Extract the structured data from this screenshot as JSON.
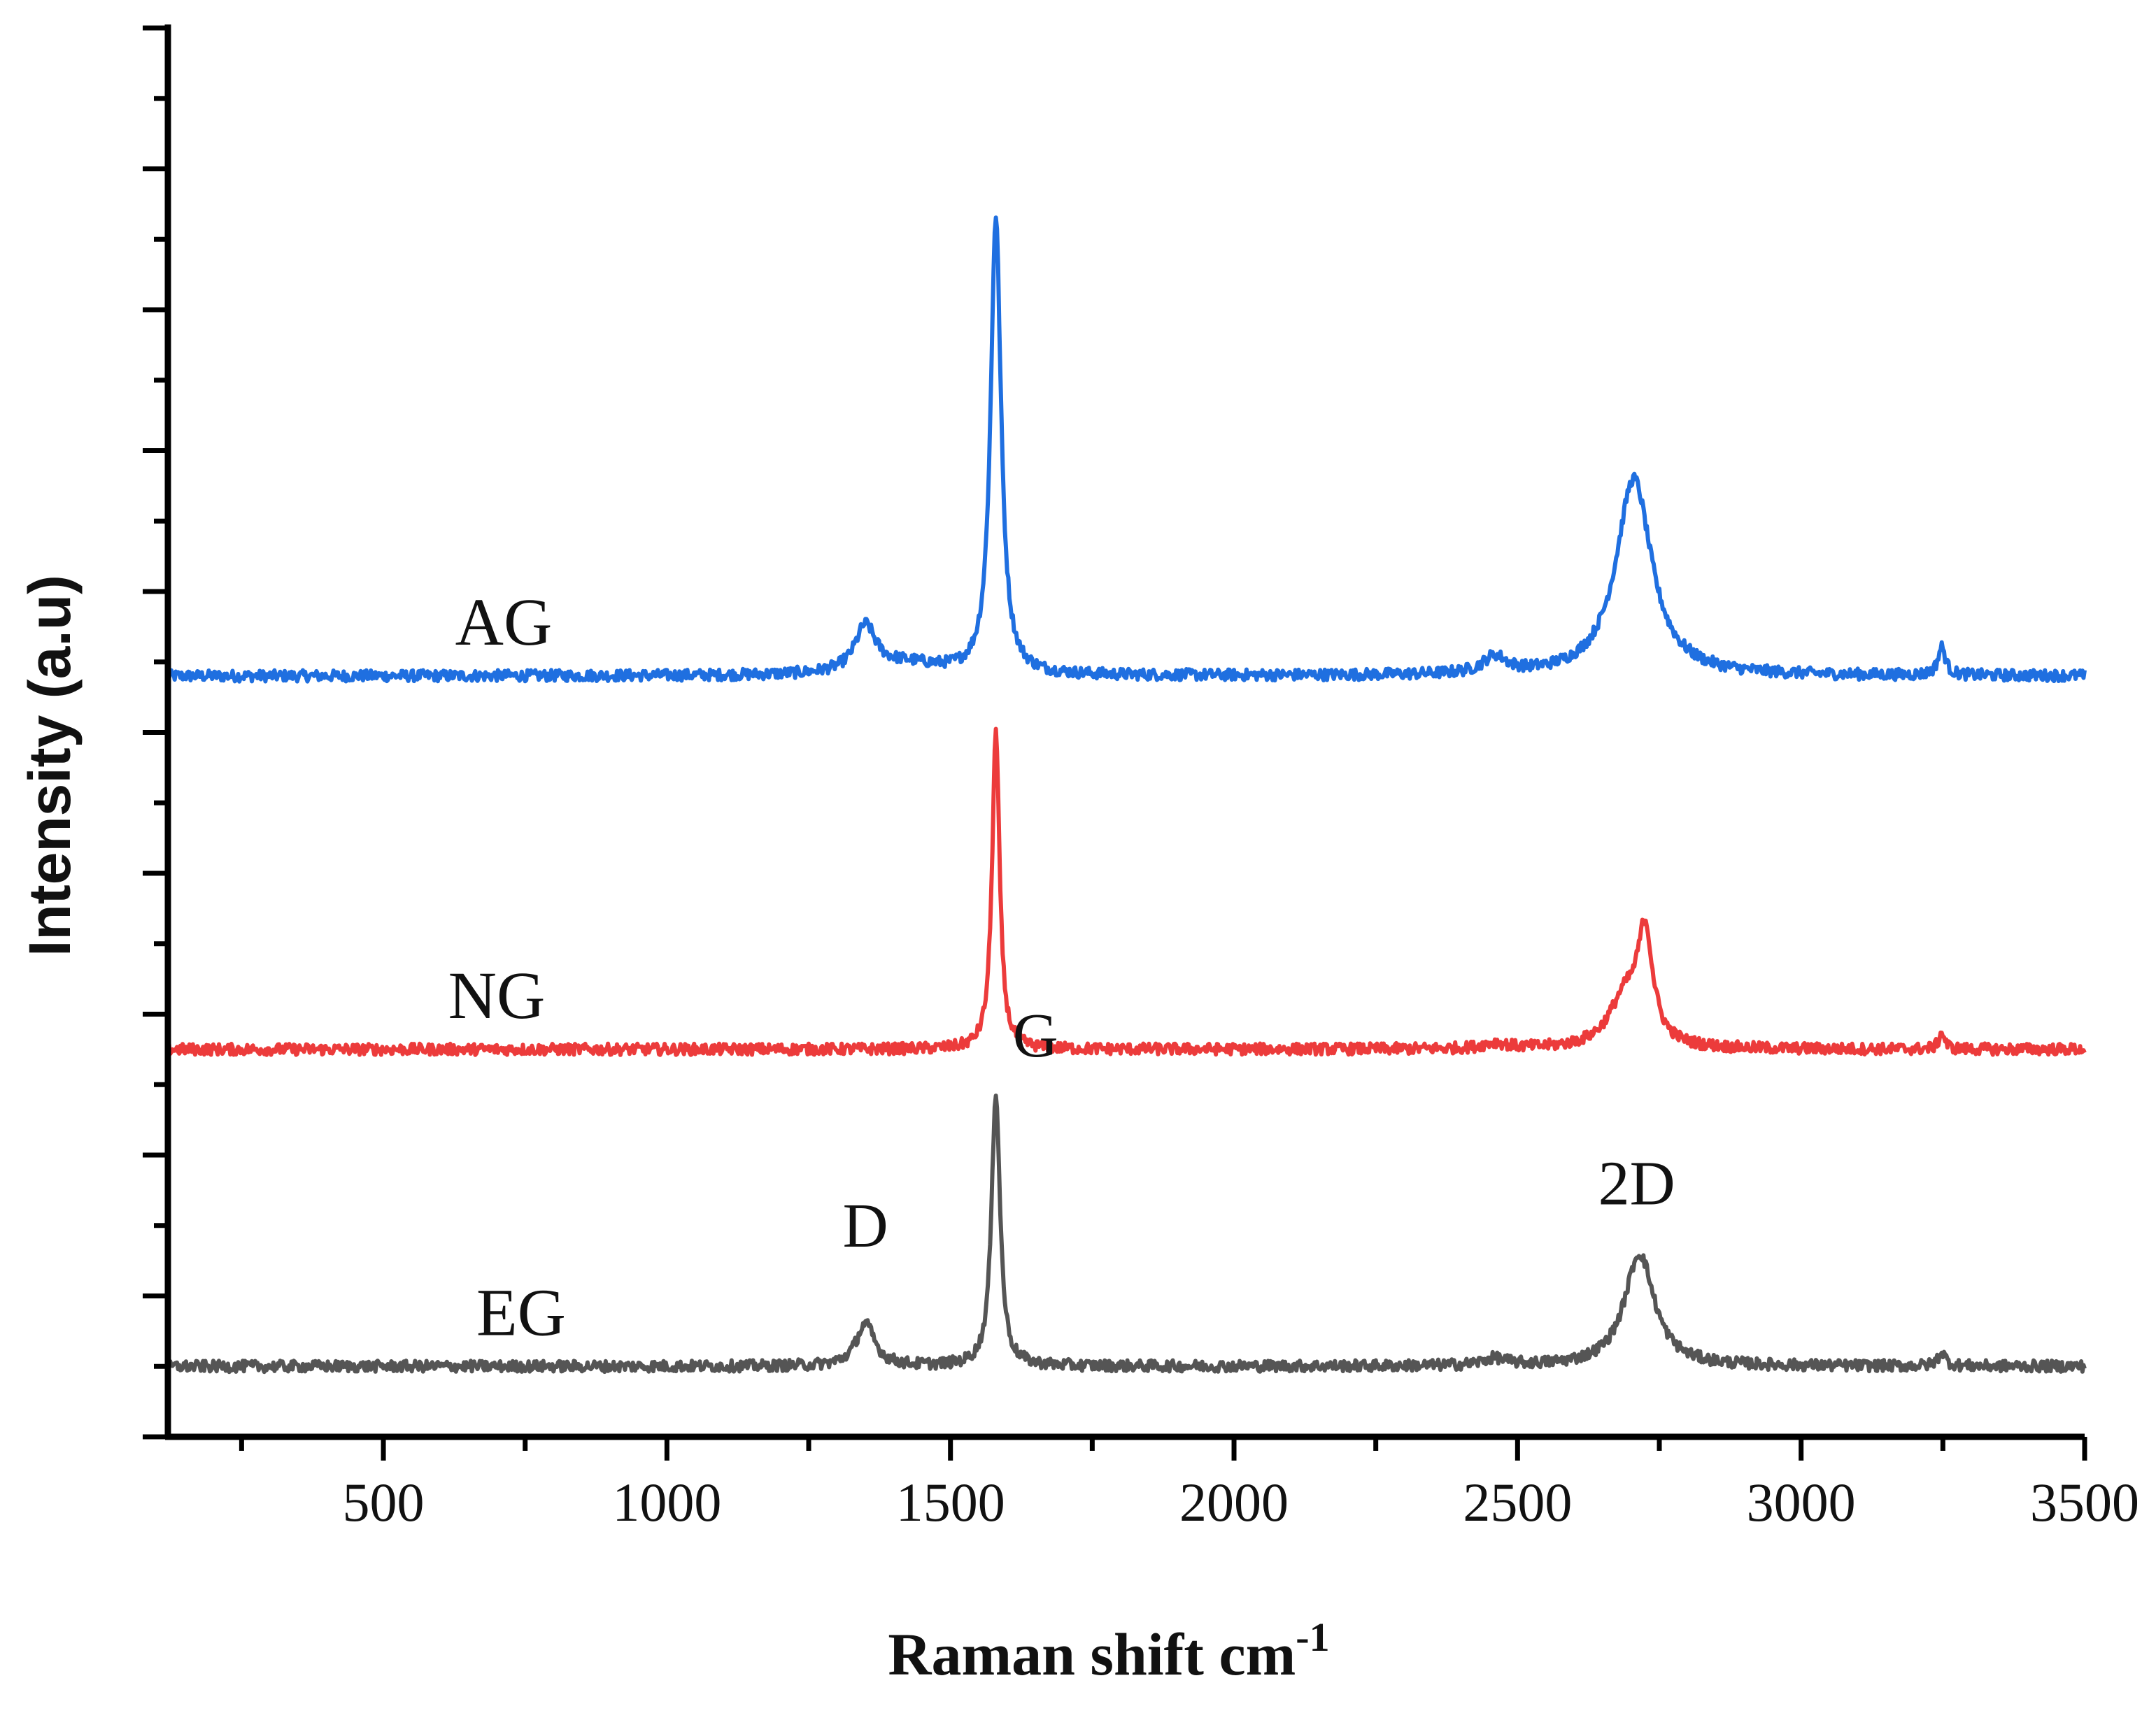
{
  "chart_data": {
    "type": "line",
    "title": "",
    "xlabel": "Raman shift cm",
    "xlabel_superscript": "-1",
    "ylabel": "Intensity (a.u)",
    "xlim": [
      120,
      3500
    ],
    "ylim": [
      0,
      1
    ],
    "x_ticks": [
      500,
      1000,
      1500,
      2000,
      2500,
      3000,
      3500
    ],
    "y_tick_labels_shown": false,
    "grid": false,
    "legend": "none",
    "series": [
      {
        "name": "AG",
        "color": "#1f6fe0",
        "offset": 0.54,
        "baseline": 0.0,
        "noise": 0.004,
        "peaks": [
          {
            "center": 1350,
            "height": 0.032,
            "width": 22
          },
          {
            "center": 1420,
            "height": 0.008,
            "width": 80
          },
          {
            "center": 1580,
            "height": 0.325,
            "width": 11
          },
          {
            "center": 2460,
            "height": 0.012,
            "width": 25
          },
          {
            "center": 2705,
            "height": 0.14,
            "width": 38
          },
          {
            "center": 3248,
            "height": 0.02,
            "width": 8
          }
        ]
      },
      {
        "name": "NG",
        "color": "#ec3b3b",
        "offset": 0.275,
        "baseline": 0.0,
        "noise": 0.004,
        "peaks": [
          {
            "center": 1580,
            "height": 0.225,
            "width": 8
          },
          {
            "center": 2460,
            "height": 0.004,
            "width": 25
          },
          {
            "center": 2690,
            "height": 0.035,
            "width": 35
          },
          {
            "center": 2725,
            "height": 0.075,
            "width": 16
          },
          {
            "center": 3248,
            "height": 0.012,
            "width": 6
          }
        ]
      },
      {
        "name": "EG",
        "color": "#555555",
        "offset": 0.05,
        "baseline": 0.0,
        "noise": 0.004,
        "peaks": [
          {
            "center": 1350,
            "height": 0.03,
            "width": 20
          },
          {
            "center": 1580,
            "height": 0.195,
            "width": 9
          },
          {
            "center": 2460,
            "height": 0.005,
            "width": 25
          },
          {
            "center": 2715,
            "height": 0.08,
            "width": 32
          },
          {
            "center": 3248,
            "height": 0.01,
            "width": 8
          }
        ]
      }
    ],
    "annotations": [
      {
        "text": "D",
        "x": 1350,
        "y": 0.135
      },
      {
        "text": "G",
        "x": 1650,
        "y": 0.27
      },
      {
        "text": "2D",
        "x": 2710,
        "y": 0.165
      }
    ]
  }
}
